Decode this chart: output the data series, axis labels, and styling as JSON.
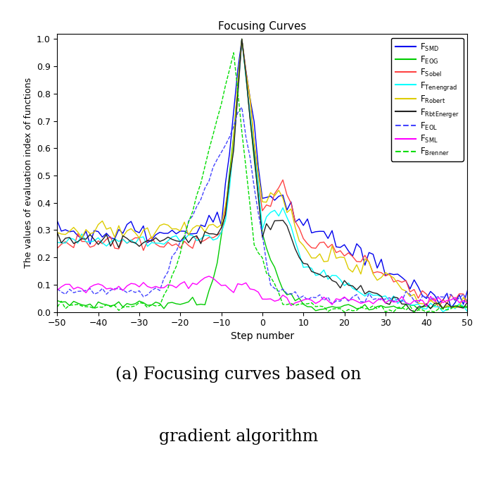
{
  "title": "Focusing Curves",
  "xlabel": "Step number",
  "ylabel": "The values of evaluation index of functions",
  "xlim": [
    -50,
    50
  ],
  "ylim": [
    0,
    1.02
  ],
  "xticks": [
    -50,
    -40,
    -30,
    -20,
    -10,
    0,
    10,
    20,
    30,
    40,
    50
  ],
  "yticks": [
    0,
    0.1,
    0.2,
    0.3,
    0.4,
    0.5,
    0.6,
    0.7,
    0.8,
    0.9,
    1
  ],
  "caption_line1": "(a) Focusing curves based on",
  "caption_line2": "gradient algorithm",
  "series": [
    {
      "name": "SMD",
      "sub": "SMD",
      "color": "#0000EE",
      "linestyle": "solid",
      "linewidth": 1.0
    },
    {
      "name": "EOG",
      "sub": "EOG",
      "color": "#00CC00",
      "linestyle": "solid",
      "linewidth": 1.0
    },
    {
      "name": "Sobel",
      "sub": "Sobel",
      "color": "#FF4444",
      "linestyle": "solid",
      "linewidth": 1.0
    },
    {
      "name": "Tenengrad",
      "sub": "Tenengrad",
      "color": "#00FFFF",
      "linestyle": "solid",
      "linewidth": 1.0
    },
    {
      "name": "Robert",
      "sub": "Robert",
      "color": "#DDCC00",
      "linestyle": "solid",
      "linewidth": 1.0
    },
    {
      "name": "RbtEnerger",
      "sub": "RbtEnerger",
      "color": "#222222",
      "linestyle": "solid",
      "linewidth": 1.0
    },
    {
      "name": "EOL",
      "sub": "EOL",
      "color": "#4444FF",
      "linestyle": "dashed",
      "linewidth": 1.0
    },
    {
      "name": "SML",
      "sub": "SML",
      "color": "#FF00FF",
      "linestyle": "solid",
      "linewidth": 1.0
    },
    {
      "name": "Brenner",
      "sub": "Brenner",
      "color": "#00DD00",
      "linestyle": "dashed",
      "linewidth": 1.0
    }
  ]
}
